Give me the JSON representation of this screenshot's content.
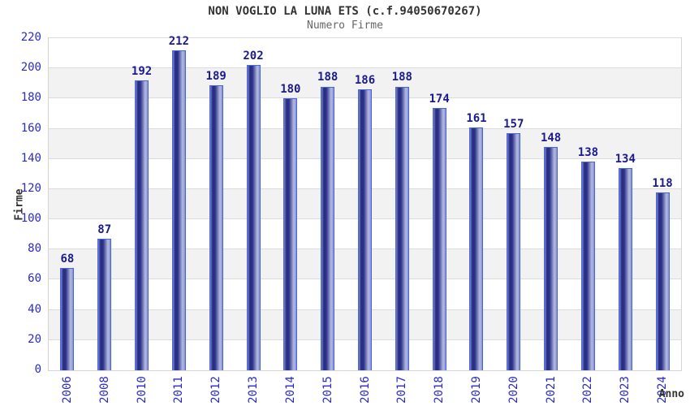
{
  "header": {
    "title": "NON VOGLIO LA LUNA ETS (c.f.94050670267)",
    "subtitle": "Numero Firme"
  },
  "chart_data": {
    "type": "bar",
    "title": "NON VOGLIO LA LUNA ETS (c.f.94050670267)",
    "subtitle": "Numero Firme",
    "xlabel": "Anno",
    "ylabel": "Firme",
    "categories": [
      "2006",
      "2008",
      "2010",
      "2011",
      "2012",
      "2013",
      "2014",
      "2015",
      "2016",
      "2017",
      "2018",
      "2019",
      "2020",
      "2021",
      "2022",
      "2023",
      "2024"
    ],
    "values": [
      68,
      87,
      192,
      212,
      189,
      202,
      180,
      188,
      186,
      188,
      174,
      161,
      157,
      148,
      138,
      134,
      118
    ],
    "ylim": [
      0,
      220
    ],
    "ytick_step": 20,
    "grid": "horizontal-bands-alternating",
    "legend": "none",
    "value_labels": true,
    "x_label_rotation": 90,
    "colors": {
      "bar_border": "#4565e2",
      "bar_gradient": [
        "#7b84cc",
        "#252c82",
        "#2b3288",
        "#b6bce3",
        "#8890d0"
      ],
      "tick_label": "#2a2ac6",
      "value_label": "#1b1b8e",
      "band_alt": "#f2f2f2",
      "grid_line": "#dcdcdc",
      "plot_border": "#d4d4d4",
      "title": "#333333",
      "subtitle": "#666666",
      "axis_title": "#333333"
    }
  }
}
